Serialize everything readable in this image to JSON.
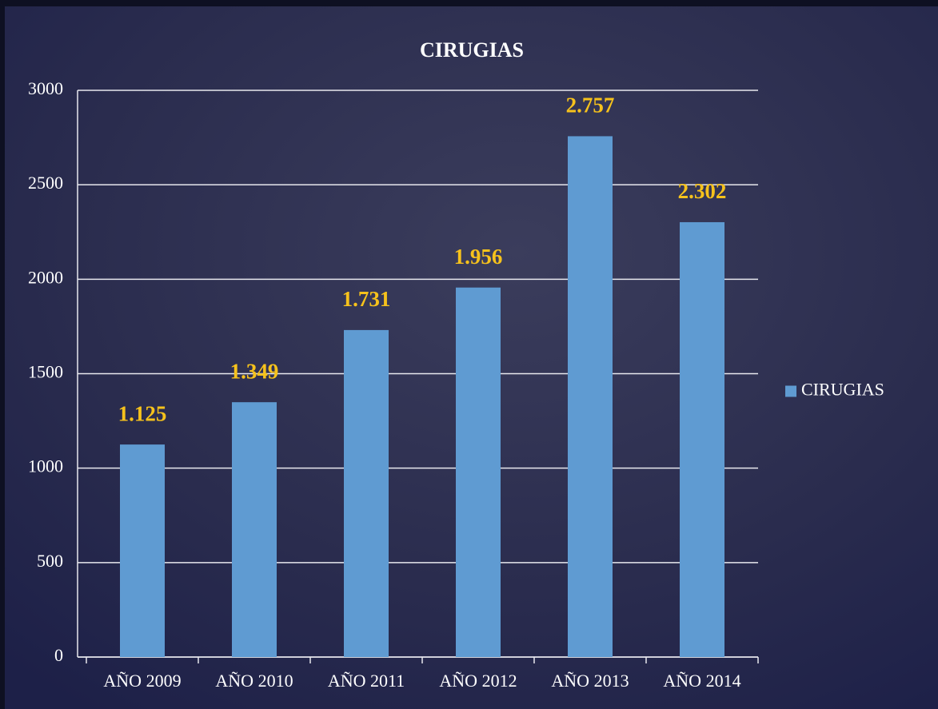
{
  "chart_data": {
    "type": "bar",
    "title": "CIRUGIAS",
    "categories": [
      "AÑO 2009",
      "AÑO 2010",
      "AÑO 2011",
      "AÑO 2012",
      "AÑO 2013",
      "AÑO 2014"
    ],
    "series": [
      {
        "name": "CIRUGIAS",
        "color": "#5f9bd2",
        "values": [
          1125,
          1349,
          1731,
          1956,
          2757,
          2302
        ],
        "value_labels": [
          "1.125",
          "1.349",
          "1.731",
          "1.956",
          "2.757",
          "2.302"
        ]
      }
    ],
    "ylim": [
      0,
      3000
    ],
    "yticks": [
      0,
      500,
      1000,
      1500,
      2000,
      2500,
      3000
    ],
    "grid": true,
    "legend": "right",
    "value_label_color": "#f6c21c"
  }
}
